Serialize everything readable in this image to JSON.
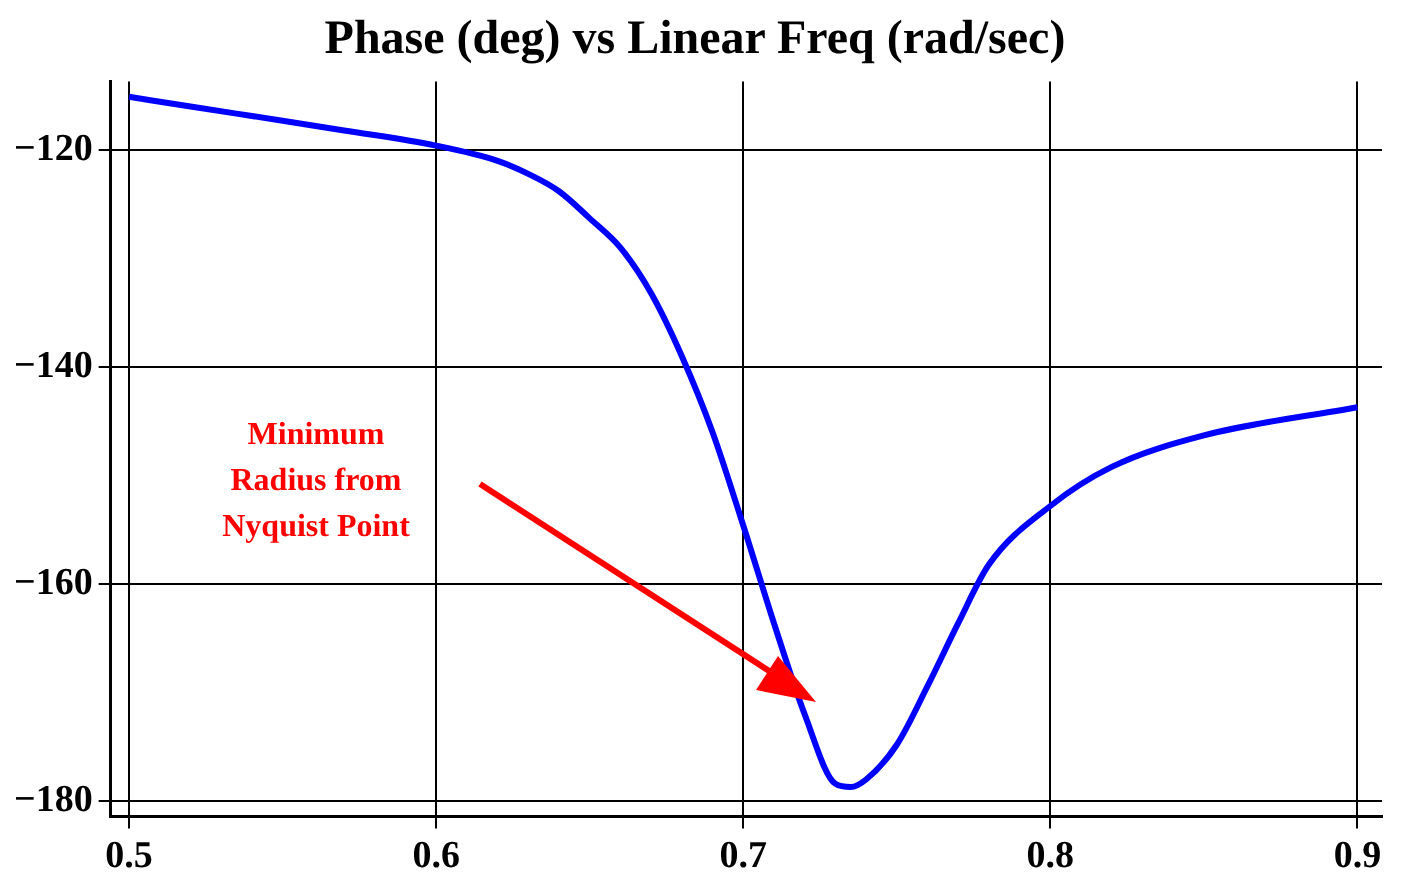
{
  "chart_data": {
    "type": "line",
    "title": "Phase (deg) vs Linear Freq (rad/sec)",
    "x": [
      0.5,
      0.52,
      0.55,
      0.57,
      0.6,
      0.62,
      0.63,
      0.64,
      0.65,
      0.66,
      0.67,
      0.68,
      0.69,
      0.7,
      0.71,
      0.72,
      0.73,
      0.735,
      0.74,
      0.75,
      0.76,
      0.77,
      0.78,
      0.8,
      0.82,
      0.85,
      0.9
    ],
    "series": [
      {
        "color": "#0000ff",
        "values": [
          -115.1,
          -116,
          -117.3,
          -118.2,
          -119.6,
          -121,
          -122.2,
          -123.8,
          -126.3,
          -129,
          -133.2,
          -139,
          -146,
          -154.6,
          -163.6,
          -172,
          -178.4,
          -178.7,
          -178,
          -174.8,
          -169.4,
          -163.6,
          -158.2,
          -152.8,
          -149.2,
          -146.3,
          -143.7
        ]
      }
    ],
    "xlim": [
      0.494,
      0.908
    ],
    "xticks": [
      0.5,
      0.6,
      0.7,
      0.8,
      0.9
    ],
    "ylim": [
      -181.4,
      -113.7
    ],
    "yticks": [
      {
        "value": -120,
        "label": "−120"
      },
      {
        "value": -140,
        "label": "−140"
      },
      {
        "value": -160,
        "label": "−160"
      },
      {
        "value": -180,
        "label": "−180"
      }
    ],
    "grid": true,
    "legend": false,
    "marker": "none",
    "line_style": "solid",
    "annotations": [
      "Minimum\nRadius from\nNyquist Point"
    ]
  }
}
